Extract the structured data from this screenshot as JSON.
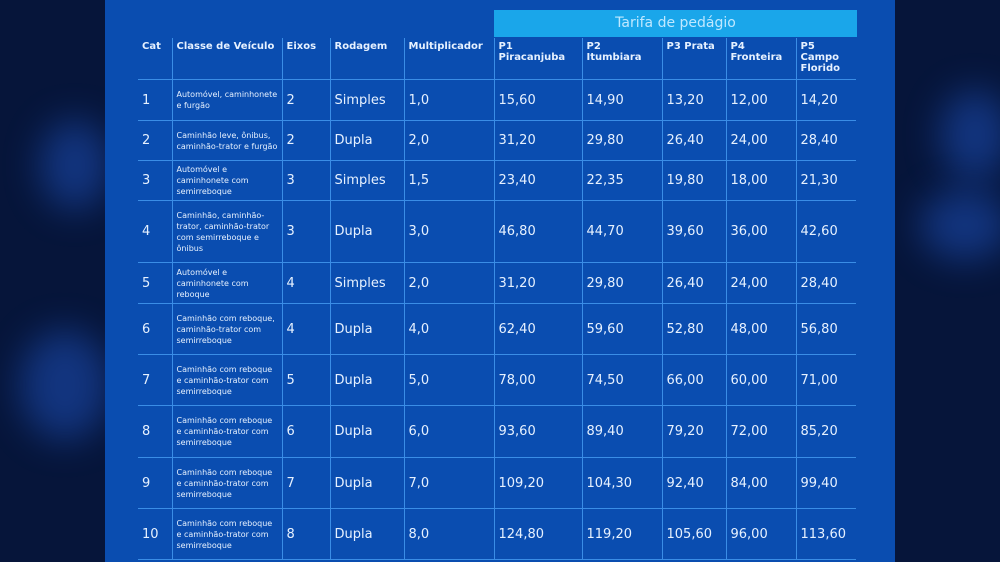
{
  "banner": "Tarifa de pedágio",
  "headers": [
    "Cat",
    "Classe de Veículo",
    "Eixos",
    "Rodagem",
    "Multiplicador",
    "P1 Piracanjuba",
    "P2 Itumbiara",
    "P3 Prata",
    "P4 Fronteira",
    "P5 Campo Florido"
  ],
  "rows": [
    [
      "1",
      "Automóvel, caminhonete e furgão",
      "2",
      "Simples",
      "1,0",
      "15,60",
      "14,90",
      "13,20",
      "12,00",
      "14,20"
    ],
    [
      "2",
      "Caminhão leve, ônibus, caminhão-trator e furgão",
      "2",
      "Dupla",
      "2,0",
      "31,20",
      "29,80",
      "26,40",
      "24,00",
      "28,40"
    ],
    [
      "3",
      "Automóvel e caminhonete com semirreboque",
      "3",
      "Simples",
      "1,5",
      "23,40",
      "22,35",
      "19,80",
      "18,00",
      "21,30"
    ],
    [
      "4",
      "Caminhão, caminhão-trator, caminhão-trator com semirreboque e ônibus",
      "3",
      "Dupla",
      "3,0",
      "46,80",
      "44,70",
      "39,60",
      "36,00",
      "42,60"
    ],
    [
      "5",
      "Automóvel e caminhonete com reboque",
      "4",
      "Simples",
      "2,0",
      "31,20",
      "29,80",
      "26,40",
      "24,00",
      "28,40"
    ],
    [
      "6",
      "Caminhão com reboque, caminhão-trator com semirreboque",
      "4",
      "Dupla",
      "4,0",
      "62,40",
      "59,60",
      "52,80",
      "48,00",
      "56,80"
    ],
    [
      "7",
      "Caminhão com reboque e caminhão-trator com semirreboque",
      "5",
      "Dupla",
      "5,0",
      "78,00",
      "74,50",
      "66,00",
      "60,00",
      "71,00"
    ],
    [
      "8",
      "Caminhão com reboque e caminhão-trator com semirreboque",
      "6",
      "Dupla",
      "6,0",
      "93,60",
      "89,40",
      "79,20",
      "72,00",
      "85,20"
    ],
    [
      "9",
      "Caminhão com reboque e caminhão-trator com semirreboque",
      "7",
      "Dupla",
      "7,0",
      "109,20",
      "104,30",
      "92,40",
      "84,00",
      "99,40"
    ],
    [
      "10",
      "Caminhão com reboque e caminhão-trator com semirreboque",
      "8",
      "Dupla",
      "8,0",
      "124,80",
      "119,20",
      "105,60",
      "96,00",
      "113,60"
    ]
  ]
}
